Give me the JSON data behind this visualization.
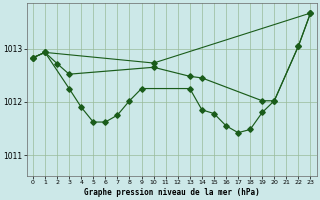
{
  "bg_color": "#cce8e8",
  "grid_color": "#99bb99",
  "line_color": "#1a5c1a",
  "ylim": [
    1010.6,
    1013.85
  ],
  "xlim": [
    -0.5,
    23.5
  ],
  "yticks": [
    1011,
    1012,
    1013
  ],
  "xticks": [
    0,
    1,
    2,
    3,
    4,
    5,
    6,
    7,
    8,
    9,
    10,
    11,
    12,
    13,
    14,
    15,
    16,
    17,
    18,
    19,
    20,
    21,
    22,
    23
  ],
  "xlabel": "Graphe pression niveau de la mer (hPa)",
  "line1_x": [
    0,
    1,
    10,
    23
  ],
  "line1_y": [
    1012.83,
    1012.93,
    1012.73,
    1013.67
  ],
  "line2_x": [
    0,
    1,
    2,
    3,
    10,
    13,
    14,
    19,
    20,
    22,
    23
  ],
  "line2_y": [
    1012.83,
    1012.93,
    1012.72,
    1012.52,
    1012.65,
    1012.48,
    1012.45,
    1012.02,
    1012.02,
    1013.05,
    1013.67
  ],
  "line3_x": [
    0,
    1,
    3,
    4,
    5,
    6,
    7,
    8,
    9,
    13,
    14,
    15,
    16,
    17,
    18,
    19,
    20,
    22,
    23
  ],
  "line3_y": [
    1012.83,
    1012.93,
    1012.25,
    1011.9,
    1011.62,
    1011.62,
    1011.75,
    1012.02,
    1012.25,
    1012.25,
    1011.85,
    1011.78,
    1011.55,
    1011.42,
    1011.48,
    1011.8,
    1012.02,
    1013.05,
    1013.67
  ]
}
